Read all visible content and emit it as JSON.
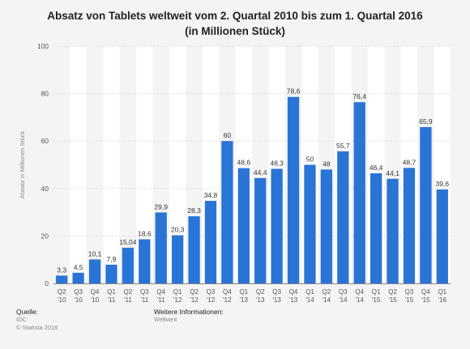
{
  "title_line1": "Absatz von Tablets weltweit vom 2. Quartal 2010 bis zum 1. Quartal 2016",
  "title_line2": "(in Millionen Stück)",
  "footer": {
    "source_label": "Quelle:",
    "source_value": "IDC",
    "copyright": "© Statista 2016",
    "info_label": "Weitere Informationen:",
    "info_value": "Weltweit"
  },
  "colors": {
    "bar": "#2a74d6",
    "band": "#ffffff",
    "background": "#f4f4f4",
    "grid": "#dddddd"
  },
  "chart_data": {
    "type": "bar",
    "title": "Absatz von Tablets weltweit vom 2. Quartal 2010 bis zum 1. Quartal 2016 (in Millionen Stück)",
    "ylabel": "Absatz in Millionen Stück",
    "xlabel": "",
    "ylim": [
      0,
      100
    ],
    "yticks": [
      0,
      20,
      40,
      60,
      80,
      100
    ],
    "grid": true,
    "categories": [
      [
        "Q2",
        "'10"
      ],
      [
        "Q3",
        "'10"
      ],
      [
        "Q4",
        "'10"
      ],
      [
        "Q1",
        "'11"
      ],
      [
        "Q2",
        "'11"
      ],
      [
        "Q3",
        "'11"
      ],
      [
        "Q4",
        "'11"
      ],
      [
        "Q1",
        "'12"
      ],
      [
        "Q2",
        "'12"
      ],
      [
        "Q3",
        "'12"
      ],
      [
        "Q4",
        "'12"
      ],
      [
        "Q1",
        "'13"
      ],
      [
        "Q2",
        "'13"
      ],
      [
        "Q3",
        "'13"
      ],
      [
        "Q4",
        "'13"
      ],
      [
        "Q1",
        "'14"
      ],
      [
        "Q2",
        "'14"
      ],
      [
        "Q3",
        "'14"
      ],
      [
        "Q4",
        "'14"
      ],
      [
        "Q1",
        "'15"
      ],
      [
        "Q2",
        "'15"
      ],
      [
        "Q3",
        "'15"
      ],
      [
        "Q4",
        "'15"
      ],
      [
        "Q1",
        "'16"
      ]
    ],
    "values": [
      3.3,
      4.5,
      10.1,
      7.9,
      15.04,
      18.6,
      29.9,
      20.3,
      28.3,
      34.8,
      60,
      48.6,
      44.4,
      48.3,
      78.6,
      50,
      48,
      55.7,
      76.4,
      46.4,
      44.1,
      48.7,
      65.9,
      39.6
    ],
    "value_labels": [
      "3,3",
      "4,5",
      "10,1",
      "7,9",
      "15,04",
      "18,6",
      "29,9",
      "20,3",
      "28,3",
      "34,8",
      "60",
      "48,6",
      "44,4",
      "48,3",
      "78,6",
      "50",
      "48",
      "55,7",
      "76,4",
      "46,4",
      "44,1",
      "48,7",
      "65,9",
      "39,6"
    ]
  }
}
